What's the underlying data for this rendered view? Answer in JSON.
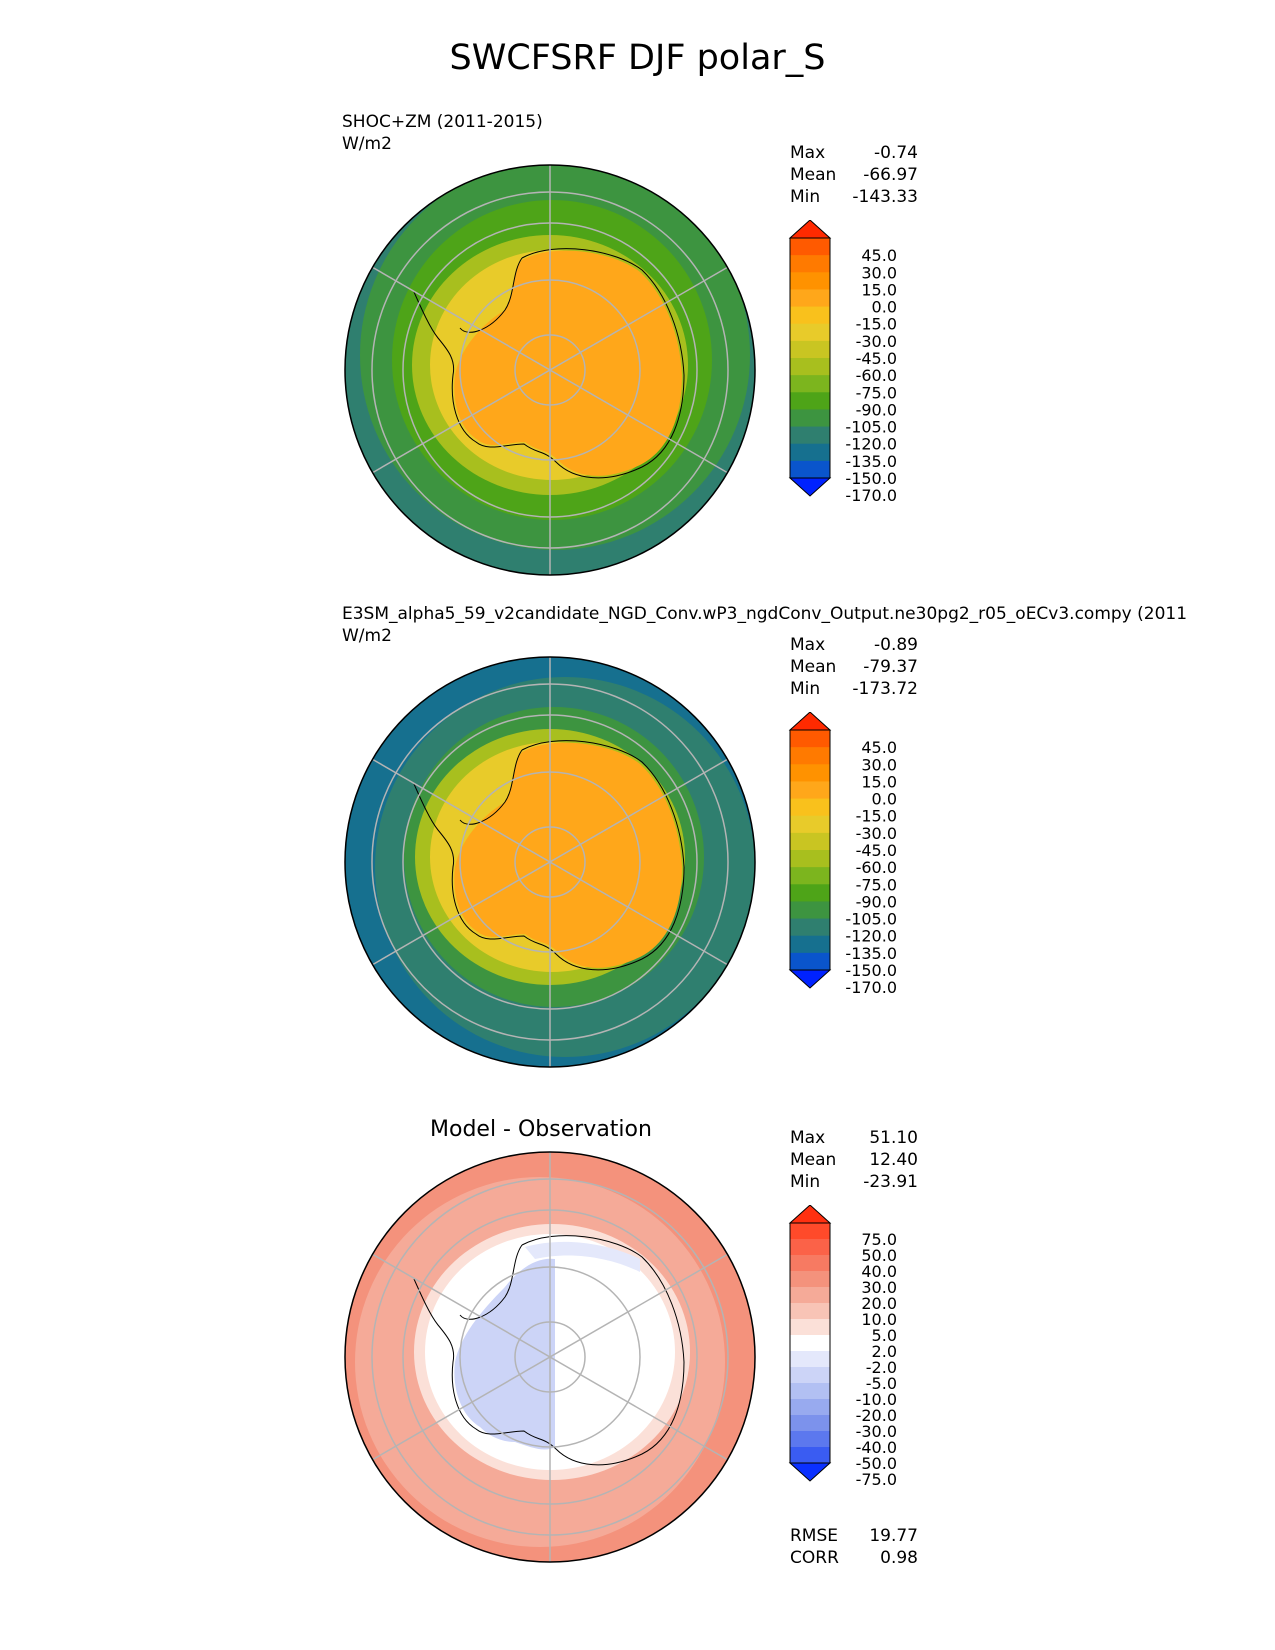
{
  "figure": {
    "title": "SWCFSRF DJF polar_S"
  },
  "panels": [
    {
      "title_line1": "SHOC+ZM (2011-2015)",
      "title_line2": "W/m2",
      "stats": [
        {
          "label": "Max",
          "value": "-0.74"
        },
        {
          "label": "Mean",
          "value": "-66.97"
        },
        {
          "label": "Min",
          "value": "-143.33"
        }
      ]
    },
    {
      "title_line1": "E3SM_alpha5_59_v2candidate_NGD_Conv.wP3_ngdConv_Output.ne30pg2_r05_oECv3.compy (2011",
      "title_line2": "W/m2",
      "stats": [
        {
          "label": "Max",
          "value": "-0.89"
        },
        {
          "label": "Mean",
          "value": "-79.37"
        },
        {
          "label": "Min",
          "value": "-173.72"
        }
      ]
    },
    {
      "title_center": "Model - Observation",
      "stats": [
        {
          "label": "Max",
          "value": "51.10"
        },
        {
          "label": "Mean",
          "value": "12.40"
        },
        {
          "label": "Min",
          "value": "-23.91"
        }
      ],
      "metrics": [
        {
          "label": "RMSE",
          "value": "19.77"
        },
        {
          "label": "CORR",
          "value": "0.98"
        }
      ]
    }
  ],
  "colors": {
    "ocean_outer_1": "#3c8c3c",
    "ocean_outer_2": "#2f7f6f",
    "ice_orange": "#ffa31a",
    "diff_red": "#f4735a",
    "diff_white": "#ffffff",
    "diff_blue": "#aebaf0"
  },
  "chart_data": [
    {
      "type": "heatmap",
      "projection": "polar stereographic, south pole",
      "colorbar": {
        "labels": [
          "45.0",
          "30.0",
          "15.0",
          "0.0",
          "-15.0",
          "-30.0",
          "-45.0",
          "-60.0",
          "-75.0",
          "-90.0",
          "-105.0",
          "-120.0",
          "-135.0",
          "-150.0",
          "-170.0"
        ],
        "colors": [
          "#ff2a00",
          "#ff5a00",
          "#ff7a00",
          "#ff9200",
          "#ffa71a",
          "#f9c11c",
          "#e8cb2a",
          "#c9c522",
          "#a8bf1e",
          "#7cb51e",
          "#4ea418",
          "#3d9440",
          "#2f7f6f",
          "#16708f",
          "#0a55cc",
          "#0022ff"
        ],
        "extend": "both"
      }
    },
    {
      "type": "heatmap",
      "projection": "polar stereographic, south pole",
      "colorbar": {
        "labels": [
          "45.0",
          "30.0",
          "15.0",
          "0.0",
          "-15.0",
          "-30.0",
          "-45.0",
          "-60.0",
          "-75.0",
          "-90.0",
          "-105.0",
          "-120.0",
          "-135.0",
          "-150.0",
          "-170.0"
        ],
        "colors": [
          "#ff2a00",
          "#ff5a00",
          "#ff7a00",
          "#ff9200",
          "#ffa71a",
          "#f9c11c",
          "#e8cb2a",
          "#c9c522",
          "#a8bf1e",
          "#7cb51e",
          "#4ea418",
          "#3d9440",
          "#2f7f6f",
          "#16708f",
          "#0a55cc",
          "#0022ff"
        ],
        "extend": "both"
      }
    },
    {
      "type": "heatmap",
      "projection": "polar stereographic, south pole",
      "colorbar": {
        "labels": [
          "75.0",
          "50.0",
          "40.0",
          "30.0",
          "20.0",
          "10.0",
          "5.0",
          "2.0",
          "-2.0",
          "-5.0",
          "-10.0",
          "-20.0",
          "-30.0",
          "-40.0",
          "-50.0",
          "-75.0"
        ],
        "colors": [
          "#ff3010",
          "#ff4a2a",
          "#fb6248",
          "#f77a62",
          "#f4927c",
          "#f5aa98",
          "#f8c4b6",
          "#fbe0d8",
          "#ffffff",
          "#e4e8fb",
          "#ccd4f7",
          "#b2c0f3",
          "#98aaef",
          "#7c92ec",
          "#5c78ee",
          "#3a5cf2",
          "#0a30ff"
        ],
        "extend": "both"
      }
    }
  ]
}
